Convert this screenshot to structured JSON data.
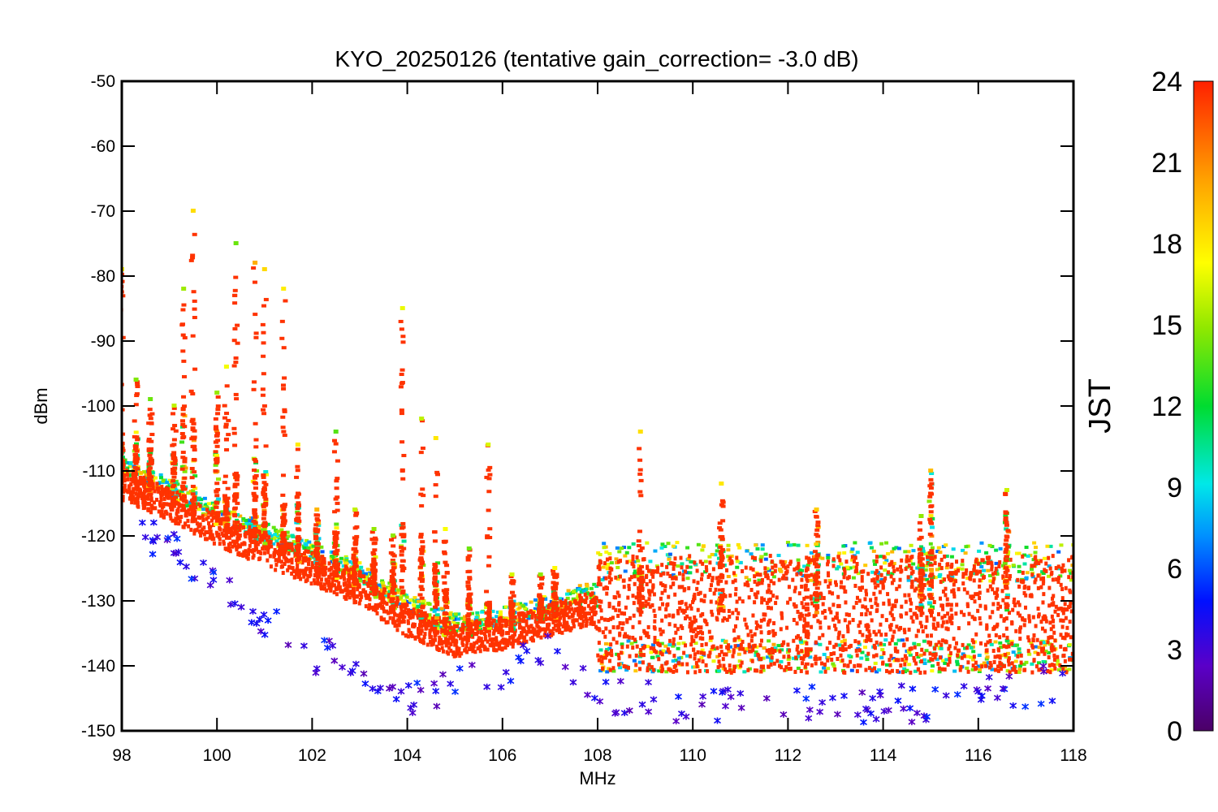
{
  "chart_data": {
    "type": "scatter",
    "title": "KYO_20250126 (tentative gain_correction= -3.0 dB)",
    "xlabel": "MHz",
    "ylabel": "dBm",
    "xlim": [
      98,
      118
    ],
    "ylim": [
      -150,
      -50
    ],
    "xticks": [
      98,
      100,
      102,
      104,
      106,
      108,
      110,
      112,
      114,
      116,
      118
    ],
    "yticks": [
      -50,
      -60,
      -70,
      -80,
      -90,
      -100,
      -110,
      -120,
      -130,
      -140,
      -150
    ],
    "grid": false,
    "colorbar": {
      "label": "JST",
      "range": [
        0,
        24
      ],
      "ticks": [
        0,
        3,
        6,
        9,
        12,
        15,
        18,
        21,
        24
      ],
      "colormap": "rainbow"
    },
    "noise_floor": [
      {
        "x": 98.0,
        "y": -112
      },
      {
        "x": 99.0,
        "y": -115
      },
      {
        "x": 100.0,
        "y": -119
      },
      {
        "x": 101.0,
        "y": -122
      },
      {
        "x": 102.0,
        "y": -125
      },
      {
        "x": 103.0,
        "y": -128
      },
      {
        "x": 104.0,
        "y": -133
      },
      {
        "x": 105.0,
        "y": -136
      },
      {
        "x": 106.0,
        "y": -135
      },
      {
        "x": 107.0,
        "y": -133
      },
      {
        "x": 107.9,
        "y": -131
      },
      {
        "x": 108.0,
        "y": -132
      },
      {
        "x": 110.0,
        "y": -132
      },
      {
        "x": 112.0,
        "y": -132
      },
      {
        "x": 114.0,
        "y": -132
      },
      {
        "x": 116.0,
        "y": -132
      },
      {
        "x": 118.0,
        "y": -132
      }
    ],
    "min_floor": [
      {
        "x": 98.0,
        "y": -118
      },
      {
        "x": 99.0,
        "y": -122
      },
      {
        "x": 100.0,
        "y": -128
      },
      {
        "x": 101.0,
        "y": -133
      },
      {
        "x": 102.0,
        "y": -138
      },
      {
        "x": 103.0,
        "y": -141
      },
      {
        "x": 104.0,
        "y": -145
      },
      {
        "x": 105.0,
        "y": -143
      },
      {
        "x": 106.0,
        "y": -141
      },
      {
        "x": 107.0,
        "y": -137
      },
      {
        "x": 108.0,
        "y": -144
      },
      {
        "x": 110.0,
        "y": -146
      },
      {
        "x": 112.0,
        "y": -146
      },
      {
        "x": 114.0,
        "y": -146
      },
      {
        "x": 116.0,
        "y": -145
      },
      {
        "x": 118.0,
        "y": -142
      }
    ],
    "peaks": [
      {
        "x": 98.0,
        "top": -79,
        "red_top": -105
      },
      {
        "x": 98.3,
        "top": -96,
        "red_top": -104
      },
      {
        "x": 98.6,
        "top": -99,
        "red_top": -106
      },
      {
        "x": 99.1,
        "top": -100,
        "red_top": -107
      },
      {
        "x": 99.3,
        "top": -82,
        "red_top": -100
      },
      {
        "x": 99.5,
        "top": -70,
        "red_top": -102
      },
      {
        "x": 100.0,
        "top": -98,
        "red_top": -103
      },
      {
        "x": 100.2,
        "top": -94,
        "red_top": -114
      },
      {
        "x": 100.4,
        "top": -75,
        "red_top": -110
      },
      {
        "x": 100.8,
        "top": -78,
        "red_top": -108
      },
      {
        "x": 101.0,
        "top": -79,
        "red_top": -110
      },
      {
        "x": 101.4,
        "top": -82,
        "red_top": -115
      },
      {
        "x": 101.7,
        "top": -106,
        "red_top": -115
      },
      {
        "x": 102.1,
        "top": -116,
        "red_top": -118
      },
      {
        "x": 102.5,
        "top": -104,
        "red_top": -118
      },
      {
        "x": 102.9,
        "top": -116,
        "red_top": -121
      },
      {
        "x": 103.3,
        "top": -119,
        "red_top": -123
      },
      {
        "x": 103.7,
        "top": -120,
        "red_top": -124
      },
      {
        "x": 103.9,
        "top": -85,
        "red_top": -118
      },
      {
        "x": 104.3,
        "top": -102,
        "red_top": -122
      },
      {
        "x": 104.6,
        "top": -105,
        "red_top": -124
      },
      {
        "x": 104.8,
        "top": -119,
        "red_top": -128
      },
      {
        "x": 105.3,
        "top": -122,
        "red_top": -128
      },
      {
        "x": 105.7,
        "top": -106,
        "red_top": -130
      },
      {
        "x": 106.2,
        "top": -126,
        "red_top": -130
      },
      {
        "x": 106.8,
        "top": -126,
        "red_top": -130
      },
      {
        "x": 107.1,
        "top": -125,
        "red_top": -128
      },
      {
        "x": 108.9,
        "top": -104,
        "red_top": -125
      },
      {
        "x": 110.6,
        "top": -112,
        "red_top": -120
      },
      {
        "x": 112.6,
        "top": -116,
        "red_top": -118
      },
      {
        "x": 114.8,
        "top": -117,
        "red_top": -122
      },
      {
        "x": 115.0,
        "top": -110,
        "red_top": -110
      },
      {
        "x": 116.6,
        "top": -113,
        "red_top": -116
      }
    ],
    "dip": {
      "x": 112.4,
      "bottom": -140
    }
  },
  "colors": {
    "floor": "#ff3300",
    "axis": "#000000"
  }
}
